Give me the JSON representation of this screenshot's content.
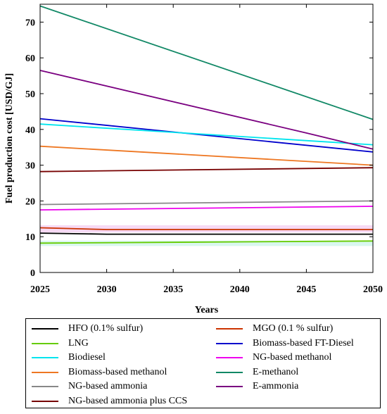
{
  "chart_data": {
    "type": "line",
    "xlabel": "Years",
    "ylabel": "Fuel  production cost [USD/GJ]",
    "xlim": [
      2025,
      2050
    ],
    "ylim": [
      0,
      75
    ],
    "x_ticks": [
      2025,
      2030,
      2035,
      2040,
      2045,
      2050
    ],
    "y_ticks": [
      0,
      10,
      20,
      30,
      40,
      50,
      60,
      70
    ],
    "legend_position": "bottom",
    "series": [
      {
        "name": "HFO (0.1% sulfur)",
        "color": "#000000",
        "x": [
          2025,
          2030,
          2050
        ],
        "y": [
          11.0,
          10.7,
          10.7
        ]
      },
      {
        "name": "MGO (0.1 % sulfur)",
        "color": "#cc3300",
        "x": [
          2025,
          2030,
          2050
        ],
        "y": [
          12.5,
          12.0,
          12.0
        ]
      },
      {
        "name": "LNG",
        "color": "#66cc00",
        "x": [
          2025,
          2050
        ],
        "y": [
          8.2,
          8.8
        ]
      },
      {
        "name": "Biomass-based FT-Diesel",
        "color": "#0000cc",
        "x": [
          2025,
          2050
        ],
        "y": [
          43.0,
          33.7
        ]
      },
      {
        "name": "Biodiesel",
        "color": "#00e5ee",
        "x": [
          2025,
          2050
        ],
        "y": [
          41.5,
          35.7
        ]
      },
      {
        "name": "NG-based methanol",
        "color": "#ee00ee",
        "x": [
          2025,
          2050
        ],
        "y": [
          17.5,
          18.5
        ]
      },
      {
        "name": "Biomass-based methanol",
        "color": "#ee7722",
        "x": [
          2025,
          2050
        ],
        "y": [
          35.3,
          30.0
        ]
      },
      {
        "name": "E-methanol",
        "color": "#118866",
        "x": [
          2025,
          2050
        ],
        "y": [
          74.5,
          42.8
        ]
      },
      {
        "name": "NG-based ammonia",
        "color": "#888888",
        "x": [
          2025,
          2050
        ],
        "y": [
          19.0,
          20.0
        ]
      },
      {
        "name": "E-ammonia",
        "color": "#7a0080",
        "x": [
          2025,
          2045,
          2050
        ],
        "y": [
          56.5,
          39.0,
          34.5
        ]
      },
      {
        "name": "NG-based ammonia plus CCS",
        "color": "#770000",
        "x": [
          2025,
          2050
        ],
        "y": [
          28.2,
          29.3
        ]
      }
    ]
  }
}
